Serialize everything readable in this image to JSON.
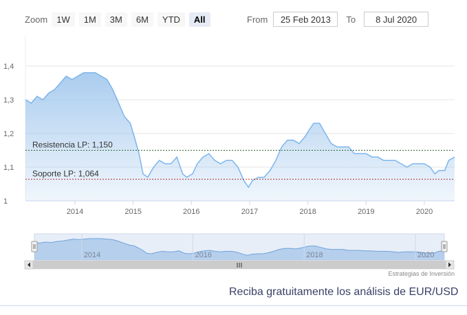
{
  "zoom": {
    "label": "Zoom",
    "buttons": [
      "1W",
      "1M",
      "3M",
      "6M",
      "YTD",
      "All"
    ],
    "active": "All"
  },
  "range": {
    "from_label": "From",
    "from_value": "25 Feb 2013",
    "to_label": "To",
    "to_value": "8 Jul 2020"
  },
  "chart_data": {
    "type": "area",
    "x_ticks": [
      "2014",
      "2015",
      "2016",
      "2017",
      "2018",
      "2019",
      "2020"
    ],
    "y_ticks": [
      "1,4",
      "1,3",
      "1,2",
      "1,1",
      "1"
    ],
    "ylim": [
      1.0,
      1.4
    ],
    "xlim": [
      2013.15,
      2020.52
    ],
    "series": [
      {
        "values": [
          [
            2013.15,
            1.3
          ],
          [
            2013.25,
            1.29
          ],
          [
            2013.35,
            1.31
          ],
          [
            2013.45,
            1.3
          ],
          [
            2013.55,
            1.32
          ],
          [
            2013.65,
            1.33
          ],
          [
            2013.75,
            1.35
          ],
          [
            2013.85,
            1.37
          ],
          [
            2013.95,
            1.36
          ],
          [
            2014.05,
            1.37
          ],
          [
            2014.15,
            1.38
          ],
          [
            2014.25,
            1.38
          ],
          [
            2014.35,
            1.38
          ],
          [
            2014.45,
            1.37
          ],
          [
            2014.55,
            1.36
          ],
          [
            2014.65,
            1.33
          ],
          [
            2014.75,
            1.29
          ],
          [
            2014.85,
            1.25
          ],
          [
            2014.95,
            1.23
          ],
          [
            2015.02,
            1.19
          ],
          [
            2015.1,
            1.14
          ],
          [
            2015.17,
            1.08
          ],
          [
            2015.25,
            1.07
          ],
          [
            2015.35,
            1.1
          ],
          [
            2015.45,
            1.12
          ],
          [
            2015.55,
            1.11
          ],
          [
            2015.65,
            1.11
          ],
          [
            2015.75,
            1.13
          ],
          [
            2015.85,
            1.08
          ],
          [
            2015.92,
            1.07
          ],
          [
            2016.02,
            1.08
          ],
          [
            2016.1,
            1.11
          ],
          [
            2016.2,
            1.13
          ],
          [
            2016.3,
            1.14
          ],
          [
            2016.4,
            1.12
          ],
          [
            2016.5,
            1.11
          ],
          [
            2016.6,
            1.12
          ],
          [
            2016.7,
            1.12
          ],
          [
            2016.8,
            1.1
          ],
          [
            2016.9,
            1.06
          ],
          [
            2016.98,
            1.04
          ],
          [
            2017.05,
            1.06
          ],
          [
            2017.15,
            1.07
          ],
          [
            2017.25,
            1.07
          ],
          [
            2017.35,
            1.09
          ],
          [
            2017.45,
            1.12
          ],
          [
            2017.55,
            1.16
          ],
          [
            2017.65,
            1.18
          ],
          [
            2017.75,
            1.18
          ],
          [
            2017.85,
            1.17
          ],
          [
            2017.95,
            1.19
          ],
          [
            2018.02,
            1.21
          ],
          [
            2018.1,
            1.23
          ],
          [
            2018.2,
            1.23
          ],
          [
            2018.3,
            1.2
          ],
          [
            2018.4,
            1.17
          ],
          [
            2018.5,
            1.16
          ],
          [
            2018.6,
            1.16
          ],
          [
            2018.7,
            1.16
          ],
          [
            2018.8,
            1.14
          ],
          [
            2018.9,
            1.14
          ],
          [
            2019.0,
            1.14
          ],
          [
            2019.1,
            1.13
          ],
          [
            2019.2,
            1.13
          ],
          [
            2019.3,
            1.12
          ],
          [
            2019.4,
            1.12
          ],
          [
            2019.5,
            1.12
          ],
          [
            2019.6,
            1.11
          ],
          [
            2019.7,
            1.1
          ],
          [
            2019.8,
            1.11
          ],
          [
            2019.9,
            1.11
          ],
          [
            2020.0,
            1.11
          ],
          [
            2020.1,
            1.1
          ],
          [
            2020.18,
            1.08
          ],
          [
            2020.25,
            1.09
          ],
          [
            2020.35,
            1.09
          ],
          [
            2020.42,
            1.12
          ],
          [
            2020.52,
            1.13
          ]
        ]
      }
    ],
    "plot_lines": [
      {
        "label": "Resistencia LP: 1,150",
        "value": 1.15,
        "color": "#2f6b2f"
      },
      {
        "label": "Soporte LP: 1,064",
        "value": 1.064,
        "color": "#b03030"
      }
    ],
    "navigator_ticks": [
      "2014",
      "2016",
      "2018",
      "2020"
    ],
    "area_fill": "#9cc4ec",
    "line_color": "#7cb5ec"
  },
  "credit": "Estrategias de Inversión",
  "cta": "Reciba gratuitamente los análisis de EUR/USD"
}
